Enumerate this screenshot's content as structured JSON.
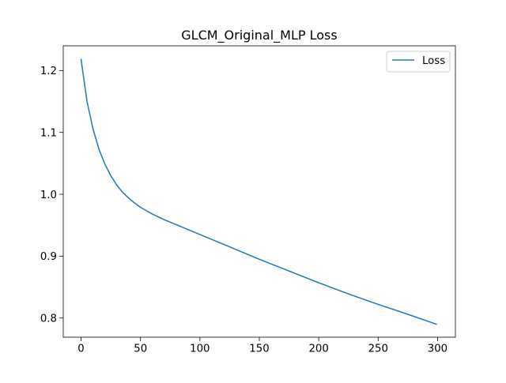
{
  "chart_data": {
    "type": "line",
    "title": "GLCM_Original_MLP Loss",
    "xlabel": "",
    "ylabel": "",
    "xlim": [
      -15,
      315
    ],
    "ylim": [
      0.769,
      1.24
    ],
    "x_ticks": [
      0,
      50,
      100,
      150,
      200,
      250,
      300
    ],
    "y_ticks": [
      0.8,
      0.9,
      1.0,
      1.1,
      1.2
    ],
    "x_tick_labels": [
      "0",
      "50",
      "100",
      "150",
      "200",
      "250",
      "300"
    ],
    "y_tick_labels": [
      "0.8",
      "0.9",
      "1.0",
      "1.1",
      "1.2"
    ],
    "grid": false,
    "legend_position": "upper-right",
    "series": [
      {
        "name": "Loss",
        "color": "#1f77b4",
        "x": [
          0,
          5,
          10,
          15,
          20,
          25,
          30,
          35,
          40,
          45,
          50,
          60,
          70,
          80,
          90,
          100,
          125,
          150,
          175,
          200,
          225,
          250,
          275,
          299
        ],
        "y": [
          1.218,
          1.15,
          1.106,
          1.073,
          1.049,
          1.03,
          1.015,
          1.003,
          0.994,
          0.986,
          0.979,
          0.968,
          0.959,
          0.951,
          0.943,
          0.935,
          0.915,
          0.895,
          0.876,
          0.857,
          0.839,
          0.822,
          0.806,
          0.79
        ]
      }
    ]
  }
}
